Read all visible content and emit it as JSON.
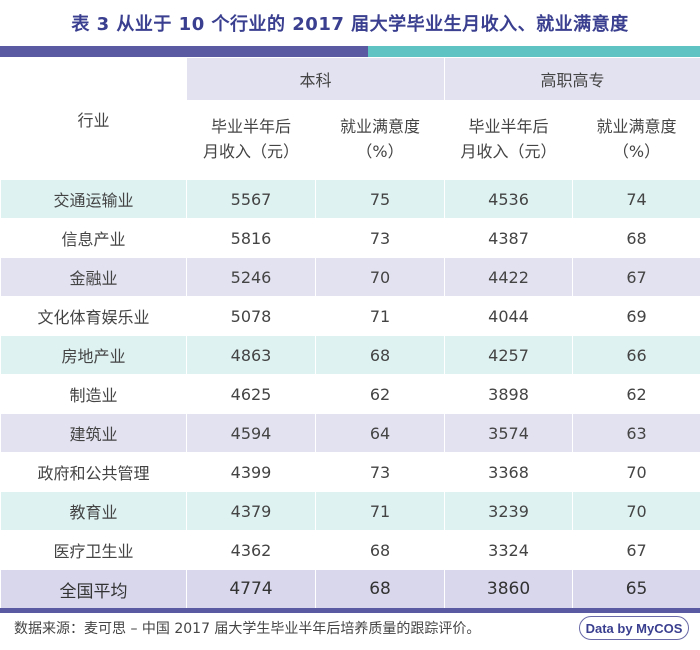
{
  "title": "表 3  从业于 10 个行业的 2017 届大学毕业生月收入、就业满意度",
  "header": {
    "industry": "行业",
    "group_bachelor": "本科",
    "group_vocational": "高职高专",
    "income_line1": "毕业半年后",
    "income_line2": "月收入（元）",
    "satisfaction_line1": "就业满意度",
    "satisfaction_line2": "（%）"
  },
  "rows": [
    {
      "industry": "交通运输业",
      "b_income": "5567",
      "b_sat": "75",
      "v_income": "4536",
      "v_sat": "74"
    },
    {
      "industry": "信息产业",
      "b_income": "5816",
      "b_sat": "73",
      "v_income": "4387",
      "v_sat": "68"
    },
    {
      "industry": "金融业",
      "b_income": "5246",
      "b_sat": "70",
      "v_income": "4422",
      "v_sat": "67"
    },
    {
      "industry": "文化体育娱乐业",
      "b_income": "5078",
      "b_sat": "71",
      "v_income": "4044",
      "v_sat": "69"
    },
    {
      "industry": "房地产业",
      "b_income": "4863",
      "b_sat": "68",
      "v_income": "4257",
      "v_sat": "66"
    },
    {
      "industry": "制造业",
      "b_income": "4625",
      "b_sat": "62",
      "v_income": "3898",
      "v_sat": "62"
    },
    {
      "industry": "建筑业",
      "b_income": "4594",
      "b_sat": "64",
      "v_income": "3574",
      "v_sat": "63"
    },
    {
      "industry": "政府和公共管理",
      "b_income": "4399",
      "b_sat": "73",
      "v_income": "3368",
      "v_sat": "70"
    },
    {
      "industry": "教育业",
      "b_income": "4379",
      "b_sat": "71",
      "v_income": "3239",
      "v_sat": "70"
    },
    {
      "industry": "医疗卫生业",
      "b_income": "4362",
      "b_sat": "68",
      "v_income": "3324",
      "v_sat": "67"
    }
  ],
  "average": {
    "industry": "全国平均",
    "b_income": "4774",
    "b_sat": "68",
    "v_income": "3860",
    "v_sat": "65"
  },
  "footer": "数据来源：麦可思 – 中国 2017 届大学生毕业半年后培养质量的跟踪评价。",
  "badge": "Data by MyCOS",
  "colors": {
    "title": "#3a3f8f",
    "accent_purple": "#5a5aa2",
    "accent_teal": "#5fc3c4",
    "row_teal": "#dff2f2",
    "row_purple": "#e3e2f1"
  }
}
